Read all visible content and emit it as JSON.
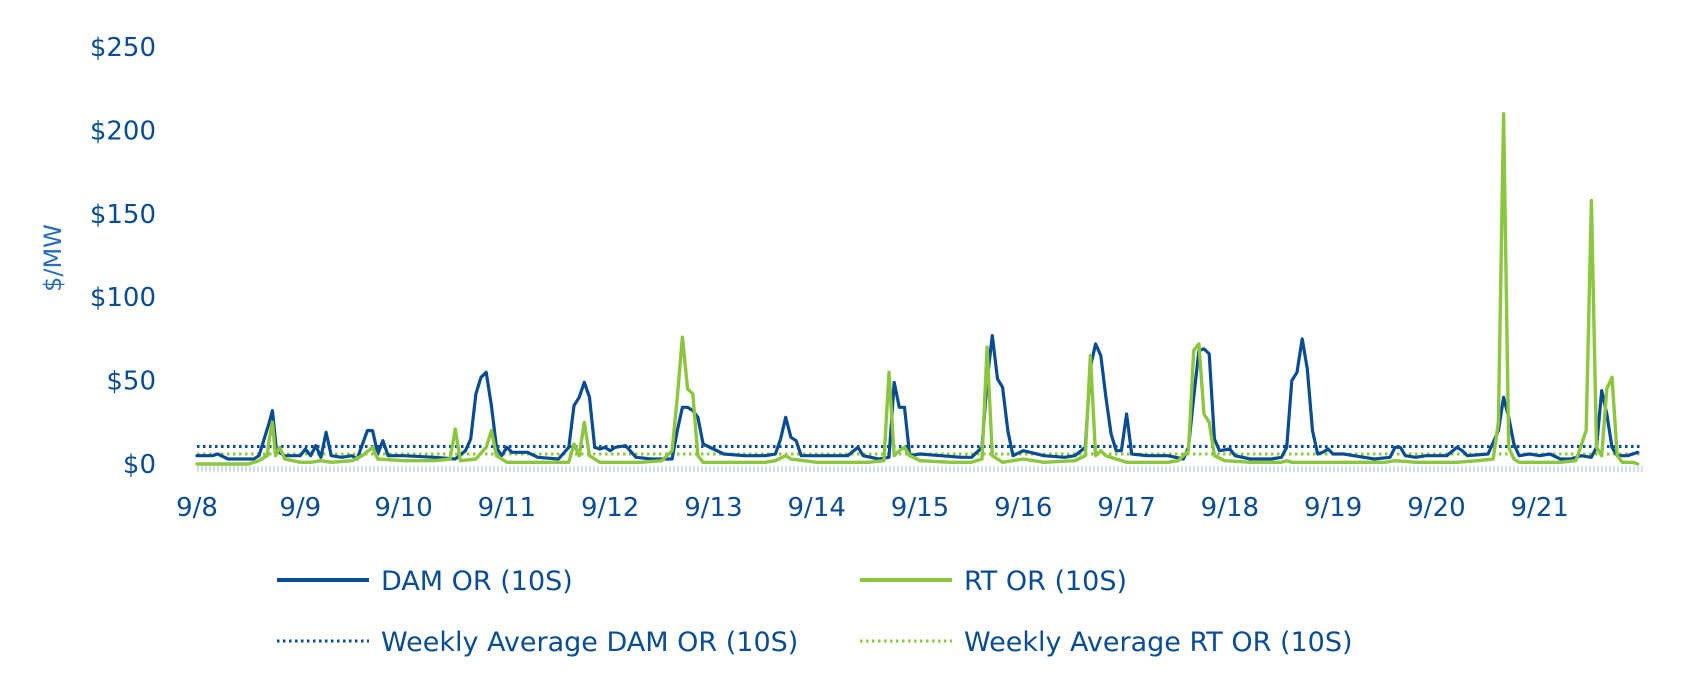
{
  "chart_data": {
    "type": "line",
    "ylabel": "$/MW",
    "ylim": [
      0,
      250
    ],
    "yticks": [
      0,
      50,
      100,
      150,
      200,
      250
    ],
    "ytick_labels": [
      "$0",
      "$50",
      "$100",
      "$150",
      "$200",
      "$250"
    ],
    "xlim": [
      0,
      14
    ],
    "x_ticks": [
      0,
      1,
      2,
      3,
      4,
      5,
      6,
      7,
      8,
      9,
      10,
      11,
      12,
      13
    ],
    "x_tick_labels": [
      "9/8",
      "9/9",
      "9/10",
      "9/11",
      "9/12",
      "9/13",
      "9/14",
      "9/15",
      "9/16",
      "9/17",
      "9/18",
      "9/19",
      "9/20",
      "9/21"
    ],
    "grid": false,
    "legend_position": "bottom",
    "colors": {
      "dam": "#0a4c92",
      "rt": "#8cc63f",
      "axis_text": "#0a4c92",
      "baseline": "#cfe0f2"
    },
    "series": [
      {
        "name": "DAM OR (10S)",
        "style": "solid",
        "color": "#0a4c92",
        "points": [
          [
            0,
            5
          ],
          [
            0.15,
            5
          ],
          [
            0.2,
            6
          ],
          [
            0.3,
            3
          ],
          [
            0.45,
            3
          ],
          [
            0.55,
            3
          ],
          [
            0.6,
            5
          ],
          [
            0.7,
            25
          ],
          [
            0.73,
            32
          ],
          [
            0.77,
            8
          ],
          [
            0.85,
            5
          ],
          [
            1.0,
            5
          ],
          [
            1.05,
            9
          ],
          [
            1.1,
            5
          ],
          [
            1.15,
            11
          ],
          [
            1.2,
            4
          ],
          [
            1.25,
            19
          ],
          [
            1.3,
            5
          ],
          [
            1.4,
            4
          ],
          [
            1.5,
            5
          ],
          [
            1.55,
            3
          ],
          [
            1.65,
            20
          ],
          [
            1.7,
            20
          ],
          [
            1.75,
            6
          ],
          [
            1.8,
            14
          ],
          [
            1.85,
            5
          ],
          [
            2.0,
            5
          ],
          [
            2.3,
            4
          ],
          [
            2.5,
            3
          ],
          [
            2.6,
            8
          ],
          [
            2.65,
            15
          ],
          [
            2.7,
            42
          ],
          [
            2.75,
            52
          ],
          [
            2.8,
            55
          ],
          [
            2.85,
            35
          ],
          [
            2.9,
            10
          ],
          [
            2.95,
            5
          ],
          [
            3.0,
            10
          ],
          [
            3.05,
            7
          ],
          [
            3.2,
            7
          ],
          [
            3.3,
            4
          ],
          [
            3.5,
            3
          ],
          [
            3.6,
            10
          ],
          [
            3.65,
            35
          ],
          [
            3.7,
            40
          ],
          [
            3.75,
            49
          ],
          [
            3.8,
            40
          ],
          [
            3.85,
            10
          ],
          [
            3.9,
            9
          ],
          [
            3.95,
            10
          ],
          [
            4.0,
            8
          ],
          [
            4.05,
            10
          ],
          [
            4.15,
            11
          ],
          [
            4.25,
            4
          ],
          [
            4.4,
            3
          ],
          [
            4.6,
            3
          ],
          [
            4.65,
            20
          ],
          [
            4.7,
            34
          ],
          [
            4.75,
            34
          ],
          [
            4.8,
            32
          ],
          [
            4.85,
            28
          ],
          [
            4.9,
            12
          ],
          [
            5.0,
            9
          ],
          [
            5.1,
            6
          ],
          [
            5.3,
            5
          ],
          [
            5.5,
            5
          ],
          [
            5.6,
            6
          ],
          [
            5.65,
            15
          ],
          [
            5.7,
            28
          ],
          [
            5.75,
            16
          ],
          [
            5.8,
            14
          ],
          [
            5.85,
            5
          ],
          [
            6.0,
            5
          ],
          [
            6.3,
            5
          ],
          [
            6.4,
            10
          ],
          [
            6.45,
            5
          ],
          [
            6.6,
            3
          ],
          [
            6.7,
            4
          ],
          [
            6.75,
            49
          ],
          [
            6.8,
            34
          ],
          [
            6.85,
            34
          ],
          [
            6.9,
            5
          ],
          [
            7.0,
            6
          ],
          [
            7.2,
            5
          ],
          [
            7.4,
            4
          ],
          [
            7.5,
            4
          ],
          [
            7.6,
            10
          ],
          [
            7.65,
            50
          ],
          [
            7.7,
            77
          ],
          [
            7.75,
            51
          ],
          [
            7.8,
            46
          ],
          [
            7.85,
            20
          ],
          [
            7.9,
            5
          ],
          [
            8.0,
            8
          ],
          [
            8.2,
            5
          ],
          [
            8.4,
            4
          ],
          [
            8.5,
            5
          ],
          [
            8.6,
            10
          ],
          [
            8.65,
            58
          ],
          [
            8.7,
            72
          ],
          [
            8.75,
            65
          ],
          [
            8.8,
            40
          ],
          [
            8.85,
            18
          ],
          [
            8.9,
            8
          ],
          [
            8.95,
            8
          ],
          [
            9.0,
            30
          ],
          [
            9.05,
            6
          ],
          [
            9.2,
            5
          ],
          [
            9.4,
            5
          ],
          [
            9.55,
            3
          ],
          [
            9.6,
            10
          ],
          [
            9.65,
            40
          ],
          [
            9.7,
            68
          ],
          [
            9.75,
            69
          ],
          [
            9.8,
            66
          ],
          [
            9.85,
            15
          ],
          [
            9.9,
            8
          ],
          [
            10.0,
            9
          ],
          [
            10.05,
            5
          ],
          [
            10.2,
            3
          ],
          [
            10.4,
            3
          ],
          [
            10.5,
            4
          ],
          [
            10.55,
            10
          ],
          [
            10.6,
            50
          ],
          [
            10.65,
            55
          ],
          [
            10.7,
            75
          ],
          [
            10.75,
            57
          ],
          [
            10.8,
            20
          ],
          [
            10.85,
            6
          ],
          [
            10.9,
            7
          ],
          [
            10.95,
            9
          ],
          [
            11.0,
            6
          ],
          [
            11.1,
            6
          ],
          [
            11.2,
            5
          ],
          [
            11.4,
            3
          ],
          [
            11.55,
            4
          ],
          [
            11.6,
            10
          ],
          [
            11.65,
            10
          ],
          [
            11.7,
            5
          ],
          [
            11.8,
            4
          ],
          [
            11.9,
            5
          ],
          [
            12.0,
            5
          ],
          [
            12.1,
            5
          ],
          [
            12.2,
            10
          ],
          [
            12.25,
            8
          ],
          [
            12.3,
            5
          ],
          [
            12.5,
            6
          ],
          [
            12.6,
            20
          ],
          [
            12.65,
            40
          ],
          [
            12.7,
            28
          ],
          [
            12.75,
            12
          ],
          [
            12.8,
            5
          ],
          [
            12.9,
            6
          ],
          [
            13.0,
            5
          ],
          [
            13.1,
            6
          ],
          [
            13.2,
            3
          ],
          [
            13.3,
            3
          ],
          [
            13.4,
            5
          ],
          [
            13.5,
            4
          ],
          [
            13.55,
            10
          ],
          [
            13.6,
            44
          ],
          [
            13.65,
            30
          ],
          [
            13.7,
            10
          ],
          [
            13.75,
            5
          ],
          [
            13.85,
            5
          ],
          [
            13.95,
            7
          ]
        ]
      },
      {
        "name": "RT OR (10S)",
        "style": "solid",
        "color": "#8cc63f",
        "points": [
          [
            0,
            0
          ],
          [
            0.3,
            0
          ],
          [
            0.5,
            0
          ],
          [
            0.6,
            2
          ],
          [
            0.68,
            5
          ],
          [
            0.7,
            15
          ],
          [
            0.73,
            25
          ],
          [
            0.76,
            5
          ],
          [
            0.8,
            10
          ],
          [
            0.85,
            3
          ],
          [
            1.0,
            1
          ],
          [
            1.1,
            1
          ],
          [
            1.2,
            2
          ],
          [
            1.3,
            1
          ],
          [
            1.5,
            2
          ],
          [
            1.6,
            5
          ],
          [
            1.7,
            10
          ],
          [
            1.75,
            3
          ],
          [
            2.0,
            2
          ],
          [
            2.3,
            2
          ],
          [
            2.45,
            3
          ],
          [
            2.5,
            21
          ],
          [
            2.55,
            2
          ],
          [
            2.7,
            3
          ],
          [
            2.8,
            10
          ],
          [
            2.85,
            20
          ],
          [
            2.9,
            5
          ],
          [
            3.0,
            1
          ],
          [
            3.3,
            1
          ],
          [
            3.5,
            1
          ],
          [
            3.6,
            1
          ],
          [
            3.65,
            12
          ],
          [
            3.7,
            5
          ],
          [
            3.75,
            25
          ],
          [
            3.8,
            5
          ],
          [
            3.9,
            1
          ],
          [
            4.3,
            1
          ],
          [
            4.5,
            2
          ],
          [
            4.6,
            8
          ],
          [
            4.65,
            40
          ],
          [
            4.7,
            76
          ],
          [
            4.75,
            45
          ],
          [
            4.8,
            42
          ],
          [
            4.85,
            5
          ],
          [
            4.9,
            1
          ],
          [
            5.2,
            1
          ],
          [
            5.5,
            1
          ],
          [
            5.6,
            2
          ],
          [
            5.7,
            5
          ],
          [
            5.75,
            3
          ],
          [
            6.0,
            1
          ],
          [
            6.3,
            1
          ],
          [
            6.5,
            1
          ],
          [
            6.65,
            2
          ],
          [
            6.7,
            55
          ],
          [
            6.75,
            5
          ],
          [
            6.8,
            8
          ],
          [
            6.85,
            10
          ],
          [
            6.9,
            5
          ],
          [
            7.0,
            2
          ],
          [
            7.3,
            1
          ],
          [
            7.5,
            1
          ],
          [
            7.6,
            3
          ],
          [
            7.65,
            70
          ],
          [
            7.7,
            5
          ],
          [
            7.8,
            1
          ],
          [
            8.0,
            3
          ],
          [
            8.2,
            1
          ],
          [
            8.5,
            2
          ],
          [
            8.6,
            5
          ],
          [
            8.65,
            65
          ],
          [
            8.7,
            5
          ],
          [
            8.75,
            8
          ],
          [
            8.8,
            5
          ],
          [
            8.9,
            3
          ],
          [
            9.0,
            1
          ],
          [
            9.2,
            1
          ],
          [
            9.4,
            1
          ],
          [
            9.5,
            2
          ],
          [
            9.6,
            8
          ],
          [
            9.65,
            68
          ],
          [
            9.7,
            72
          ],
          [
            9.75,
            30
          ],
          [
            9.8,
            25
          ],
          [
            9.85,
            5
          ],
          [
            9.95,
            2
          ],
          [
            10.2,
            1
          ],
          [
            10.5,
            1
          ],
          [
            10.55,
            2
          ],
          [
            10.6,
            1
          ],
          [
            10.9,
            1
          ],
          [
            11.2,
            1
          ],
          [
            11.5,
            1
          ],
          [
            11.6,
            2
          ],
          [
            11.8,
            1
          ],
          [
            12.0,
            1
          ],
          [
            12.2,
            1
          ],
          [
            12.4,
            2
          ],
          [
            12.55,
            3
          ],
          [
            12.6,
            25
          ],
          [
            12.65,
            210
          ],
          [
            12.7,
            10
          ],
          [
            12.75,
            3
          ],
          [
            12.8,
            1
          ],
          [
            13.0,
            1
          ],
          [
            13.2,
            1
          ],
          [
            13.35,
            2
          ],
          [
            13.45,
            20
          ],
          [
            13.5,
            158
          ],
          [
            13.55,
            10
          ],
          [
            13.6,
            5
          ],
          [
            13.65,
            45
          ],
          [
            13.7,
            52
          ],
          [
            13.75,
            5
          ],
          [
            13.8,
            1
          ],
          [
            13.9,
            1
          ],
          [
            13.95,
            0
          ]
        ]
      },
      {
        "name": "Weekly Average DAM OR (10S)",
        "style": "dotted",
        "color": "#0a4c92",
        "points": [
          [
            0,
            10.5
          ],
          [
            14,
            10.5
          ]
        ]
      },
      {
        "name": "Weekly Average RT OR (10S)",
        "style": "dotted",
        "color": "#8cc63f",
        "points": [
          [
            0,
            6
          ],
          [
            14,
            6
          ]
        ]
      }
    ]
  }
}
